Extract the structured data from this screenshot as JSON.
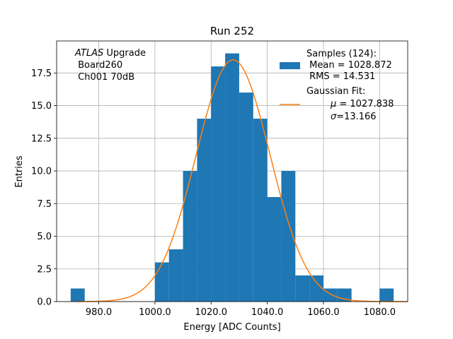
{
  "chart_data": {
    "type": "bar",
    "title": "Run 252",
    "xlabel": "Energy [ADC Counts]",
    "ylabel": "Entries",
    "xlim": [
      965,
      1090
    ],
    "ylim": [
      0,
      19.95
    ],
    "grid": true,
    "bin_width": 5,
    "bins": [
      {
        "left": 970,
        "count": 1
      },
      {
        "left": 975,
        "count": 0
      },
      {
        "left": 980,
        "count": 0
      },
      {
        "left": 985,
        "count": 0
      },
      {
        "left": 990,
        "count": 0
      },
      {
        "left": 995,
        "count": 0
      },
      {
        "left": 1000,
        "count": 3
      },
      {
        "left": 1005,
        "count": 4
      },
      {
        "left": 1010,
        "count": 10
      },
      {
        "left": 1015,
        "count": 14
      },
      {
        "left": 1020,
        "count": 18
      },
      {
        "left": 1025,
        "count": 19
      },
      {
        "left": 1030,
        "count": 16
      },
      {
        "left": 1035,
        "count": 14
      },
      {
        "left": 1040,
        "count": 8
      },
      {
        "left": 1045,
        "count": 10
      },
      {
        "left": 1050,
        "count": 2
      },
      {
        "left": 1055,
        "count": 2
      },
      {
        "left": 1060,
        "count": 1
      },
      {
        "left": 1065,
        "count": 1
      },
      {
        "left": 1070,
        "count": 0
      },
      {
        "left": 1075,
        "count": 0
      },
      {
        "left": 1080,
        "count": 1
      }
    ],
    "x_ticks": [
      {
        "value": 980,
        "label": "980.0"
      },
      {
        "value": 1000,
        "label": "1000.0"
      },
      {
        "value": 1020,
        "label": "1020.0"
      },
      {
        "value": 1040,
        "label": "1040.0"
      },
      {
        "value": 1060,
        "label": "1060.0"
      },
      {
        "value": 1080,
        "label": "1080.0"
      }
    ],
    "y_ticks": [
      {
        "value": 0,
        "label": "0.0"
      },
      {
        "value": 2.5,
        "label": "2.5"
      },
      {
        "value": 5,
        "label": "5.0"
      },
      {
        "value": 7.5,
        "label": "7.5"
      },
      {
        "value": 10,
        "label": "10.0"
      },
      {
        "value": 12.5,
        "label": "12.5"
      },
      {
        "value": 15,
        "label": "15.0"
      },
      {
        "value": 17.5,
        "label": "17.5"
      }
    ],
    "gaussian_fit": {
      "mu": 1027.838,
      "sigma": 13.166,
      "amplitude": 18.5
    },
    "annotation": {
      "line1_italic": "ATLAS",
      "line1_rest": " Upgrade",
      "line2": " Board260",
      "line3": " Ch001 70dB"
    },
    "legend": {
      "location": "upper right",
      "histogram": {
        "line1": "Samples (124):",
        "line2": " Mean = 1028.872",
        "line3": " RMS = 14.531",
        "color": "#1f77b4"
      },
      "fit": {
        "line1": "Gaussian Fit:",
        "line2_symbol": "μ",
        "line2_rest": " = 1027.838",
        "line3_symbol": "σ",
        "line3_rest": "=13.166",
        "color": "#ff7f0e"
      }
    }
  }
}
